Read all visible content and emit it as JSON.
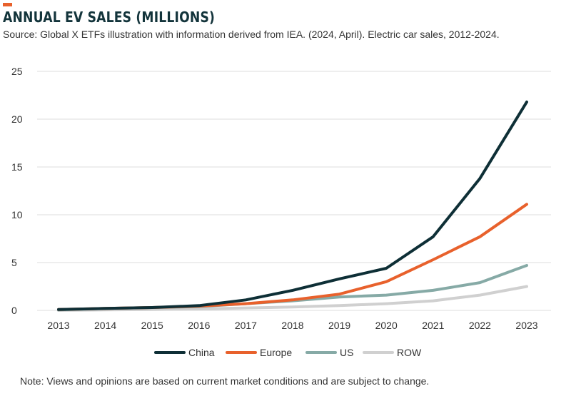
{
  "header": {
    "title": "ANNUAL EV SALES (MILLIONS)",
    "subtitle": "Source: Global X ETFs illustration with information derived from IEA. (2024, April). Electric car sales, 2012-2024."
  },
  "footer": {
    "note": "Note: Views and opinions are based on current market conditions and are subject to change."
  },
  "colors": {
    "accent": "#e8612c",
    "title": "#13343b",
    "grid": "#dcdcdc"
  },
  "chart_data": {
    "type": "line",
    "title": "ANNUAL EV SALES (MILLIONS)",
    "xlabel": "",
    "ylabel": "",
    "categories": [
      "2013",
      "2014",
      "2015",
      "2016",
      "2017",
      "2018",
      "2019",
      "2020",
      "2021",
      "2022",
      "2023"
    ],
    "ylim": [
      0,
      25
    ],
    "yticks": [
      0,
      5,
      10,
      15,
      20,
      25
    ],
    "grid": "horizontal",
    "legend_position": "bottom",
    "series": [
      {
        "name": "China",
        "color": "#0e2f36",
        "values": [
          0.1,
          0.2,
          0.3,
          0.5,
          1.1,
          2.1,
          3.3,
          4.4,
          7.7,
          13.8,
          21.8
        ]
      },
      {
        "name": "Europe",
        "color": "#e8612c",
        "values": [
          0.1,
          0.2,
          0.3,
          0.45,
          0.7,
          1.1,
          1.7,
          3.0,
          5.3,
          7.7,
          11.1
        ]
      },
      {
        "name": "US",
        "color": "#86aaa6",
        "values": [
          0.05,
          0.2,
          0.3,
          0.4,
          0.7,
          1.0,
          1.4,
          1.6,
          2.1,
          2.9,
          4.7
        ]
      },
      {
        "name": "ROW",
        "color": "#d0d0d0",
        "values": [
          0.0,
          0.05,
          0.1,
          0.15,
          0.25,
          0.35,
          0.5,
          0.7,
          1.0,
          1.6,
          2.5
        ]
      }
    ]
  }
}
